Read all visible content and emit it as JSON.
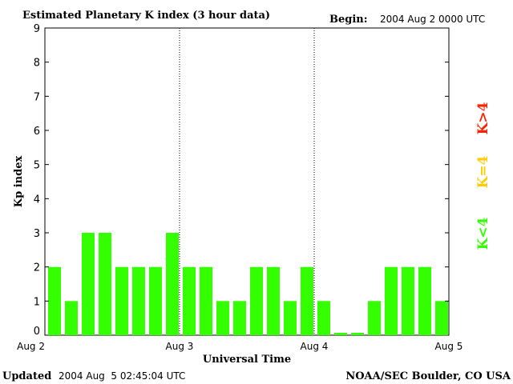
{
  "chart_data": {
    "type": "bar",
    "title": "Estimated Planetary K index (3 hour data)",
    "begin_label": "Begin:",
    "begin_value": "2004 Aug 2 0000 UTC",
    "ylabel": "Kp index",
    "xlabel": "Universal Time",
    "ylim": [
      0,
      9
    ],
    "yticks": [
      "0",
      "1",
      "2",
      "3",
      "4",
      "5",
      "6",
      "7",
      "8",
      "9"
    ],
    "xticks": [
      "Aug 2",
      "Aug 3",
      "Aug 4",
      "Aug 5"
    ],
    "values": [
      2,
      1,
      3,
      3,
      2,
      2,
      2,
      3,
      2,
      2,
      1,
      1,
      2,
      2,
      1,
      2,
      1,
      0.07,
      0.07,
      1,
      2,
      2,
      2,
      1
    ],
    "bar_color": "#33ff00",
    "legend": [
      {
        "label": "K<4",
        "color": "#33ff00"
      },
      {
        "label": "K=4",
        "color": "#ffcc00"
      },
      {
        "label": "K>4",
        "color": "#ff2200"
      }
    ],
    "grid": "vertical dotted lines at day boundaries"
  },
  "footer": {
    "updated_label": "Updated",
    "updated_value": "2004 Aug  5 02:45:04 UTC",
    "source": "NOAA/SEC Boulder, CO USA"
  }
}
